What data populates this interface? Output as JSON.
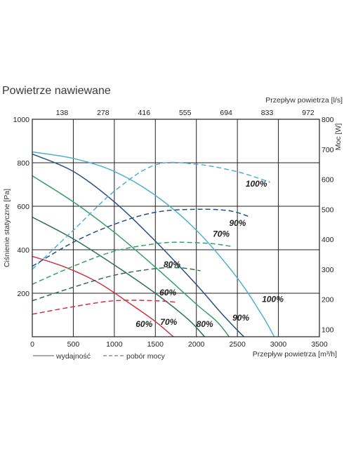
{
  "chart_data": {
    "type": "line",
    "title": "Powietrze nawiewane",
    "xlabel": "Przepływ powietrza [m³/h]",
    "x2label": "Przepływ powietrza [l/s]",
    "ylabel": "Ciśnienie statyczne [Pa]",
    "y2label": "Moc [W]",
    "xlim": [
      0,
      3500
    ],
    "ylim": [
      0,
      1000
    ],
    "y2lim": [
      75,
      800
    ],
    "grid": true,
    "x_ticks": [
      0,
      500,
      1000,
      1500,
      2000,
      2500,
      3000,
      3500
    ],
    "x_tick_labels": [
      "0",
      "500",
      "1000",
      "1500",
      "2000",
      "2500",
      "3000",
      "3500"
    ],
    "y_ticks": [
      200,
      400,
      600,
      800,
      1000
    ],
    "y_tick_labels": [
      "200",
      "400",
      "600",
      "800",
      "1000"
    ],
    "x2_ticks": [
      500,
      1000,
      1500,
      2000,
      2500,
      3000,
      3500
    ],
    "x2_tick_labels": [
      "138",
      "278",
      "416",
      "555",
      "694",
      "833",
      "972"
    ],
    "y2_ticks": [
      100,
      200,
      300,
      400,
      500,
      600,
      700,
      800
    ],
    "y2_tick_labels": [
      "100",
      "200",
      "300",
      "400",
      "500",
      "600",
      "700",
      "800"
    ],
    "legend": {
      "position": "bottom-left",
      "solid_label": "wydajność",
      "dashed_label": "pobór mocy"
    },
    "series": [
      {
        "label": "100%",
        "color": "#4fb0d0",
        "axis": "pressure",
        "style": "solid",
        "x": [
          0,
          500,
          1000,
          1500,
          2000,
          2500,
          2800,
          2950
        ],
        "y": [
          850,
          820,
          760,
          650,
          490,
          270,
          100,
          0
        ]
      },
      {
        "label": "90%",
        "color": "#2d4d82",
        "axis": "pressure",
        "style": "solid",
        "x": [
          0,
          500,
          1000,
          1500,
          2000,
          2300,
          2500,
          2580
        ],
        "y": [
          840,
          760,
          620,
          440,
          240,
          110,
          30,
          0
        ]
      },
      {
        "label": "80%",
        "color": "#36a06a",
        "axis": "pressure",
        "style": "solid",
        "x": [
          0,
          500,
          1000,
          1500,
          2000,
          2250,
          2400
        ],
        "y": [
          740,
          620,
          480,
          320,
          150,
          70,
          0
        ]
      },
      {
        "label": "70%",
        "color": "#2e7050",
        "axis": "pressure",
        "style": "solid",
        "x": [
          0,
          500,
          1000,
          1500,
          1900,
          2100
        ],
        "y": [
          550,
          450,
          330,
          200,
          80,
          0
        ]
      },
      {
        "label": "60%",
        "color": "#cc3344",
        "axis": "pressure",
        "style": "solid",
        "x": [
          0,
          400,
          800,
          1200,
          1500,
          1720
        ],
        "y": [
          370,
          320,
          250,
          150,
          70,
          0
        ]
      },
      {
        "label": "100%",
        "color": "#4fb0d0",
        "axis": "power",
        "style": "dashed",
        "x": [
          0,
          500,
          1000,
          1500,
          2000,
          2500,
          2900
        ],
        "y": [
          300,
          430,
          560,
          648,
          650,
          625,
          590
        ]
      },
      {
        "label": "90%",
        "color": "#2d4d82",
        "axis": "power",
        "style": "dashed",
        "x": [
          0,
          500,
          1000,
          1500,
          2000,
          2400,
          2650
        ],
        "y": [
          310,
          390,
          450,
          490,
          500,
          495,
          475
        ]
      },
      {
        "label": "70%",
        "color": "#36a06a",
        "axis": "power",
        "style": "dashed",
        "x": [
          0,
          500,
          1000,
          1500,
          1800,
          2200,
          2450
        ],
        "y": [
          250,
          310,
          360,
          385,
          390,
          385,
          375
        ]
      },
      {
        "label": "80%",
        "color": "#2e7050",
        "axis": "power",
        "style": "dashed",
        "x": [
          0,
          500,
          1000,
          1500,
          1800,
          2050
        ],
        "y": [
          195,
          240,
          280,
          302,
          305,
          295
        ]
      },
      {
        "label": "60%",
        "color": "#cc3344",
        "axis": "power",
        "style": "dashed",
        "x": [
          0,
          500,
          1000,
          1500,
          1750
        ],
        "y": [
          150,
          175,
          195,
          195,
          190
        ]
      }
    ],
    "annotations": [
      {
        "text": "100%",
        "x": 2600,
        "y": 690
      },
      {
        "text": "90%",
        "x": 2400,
        "y": 510
      },
      {
        "text": "70%",
        "x": 2200,
        "y": 460
      },
      {
        "text": "80%",
        "x": 1600,
        "y": 320
      },
      {
        "text": "60%",
        "x": 1550,
        "y": 190
      },
      {
        "text": "100%",
        "x": 2800,
        "y": 160
      },
      {
        "text": "90%",
        "x": 2440,
        "y": 75
      },
      {
        "text": "80%",
        "x": 2000,
        "y": 45
      },
      {
        "text": "70%",
        "x": 1560,
        "y": 55
      },
      {
        "text": "60%",
        "x": 1260,
        "y": 45
      }
    ]
  }
}
